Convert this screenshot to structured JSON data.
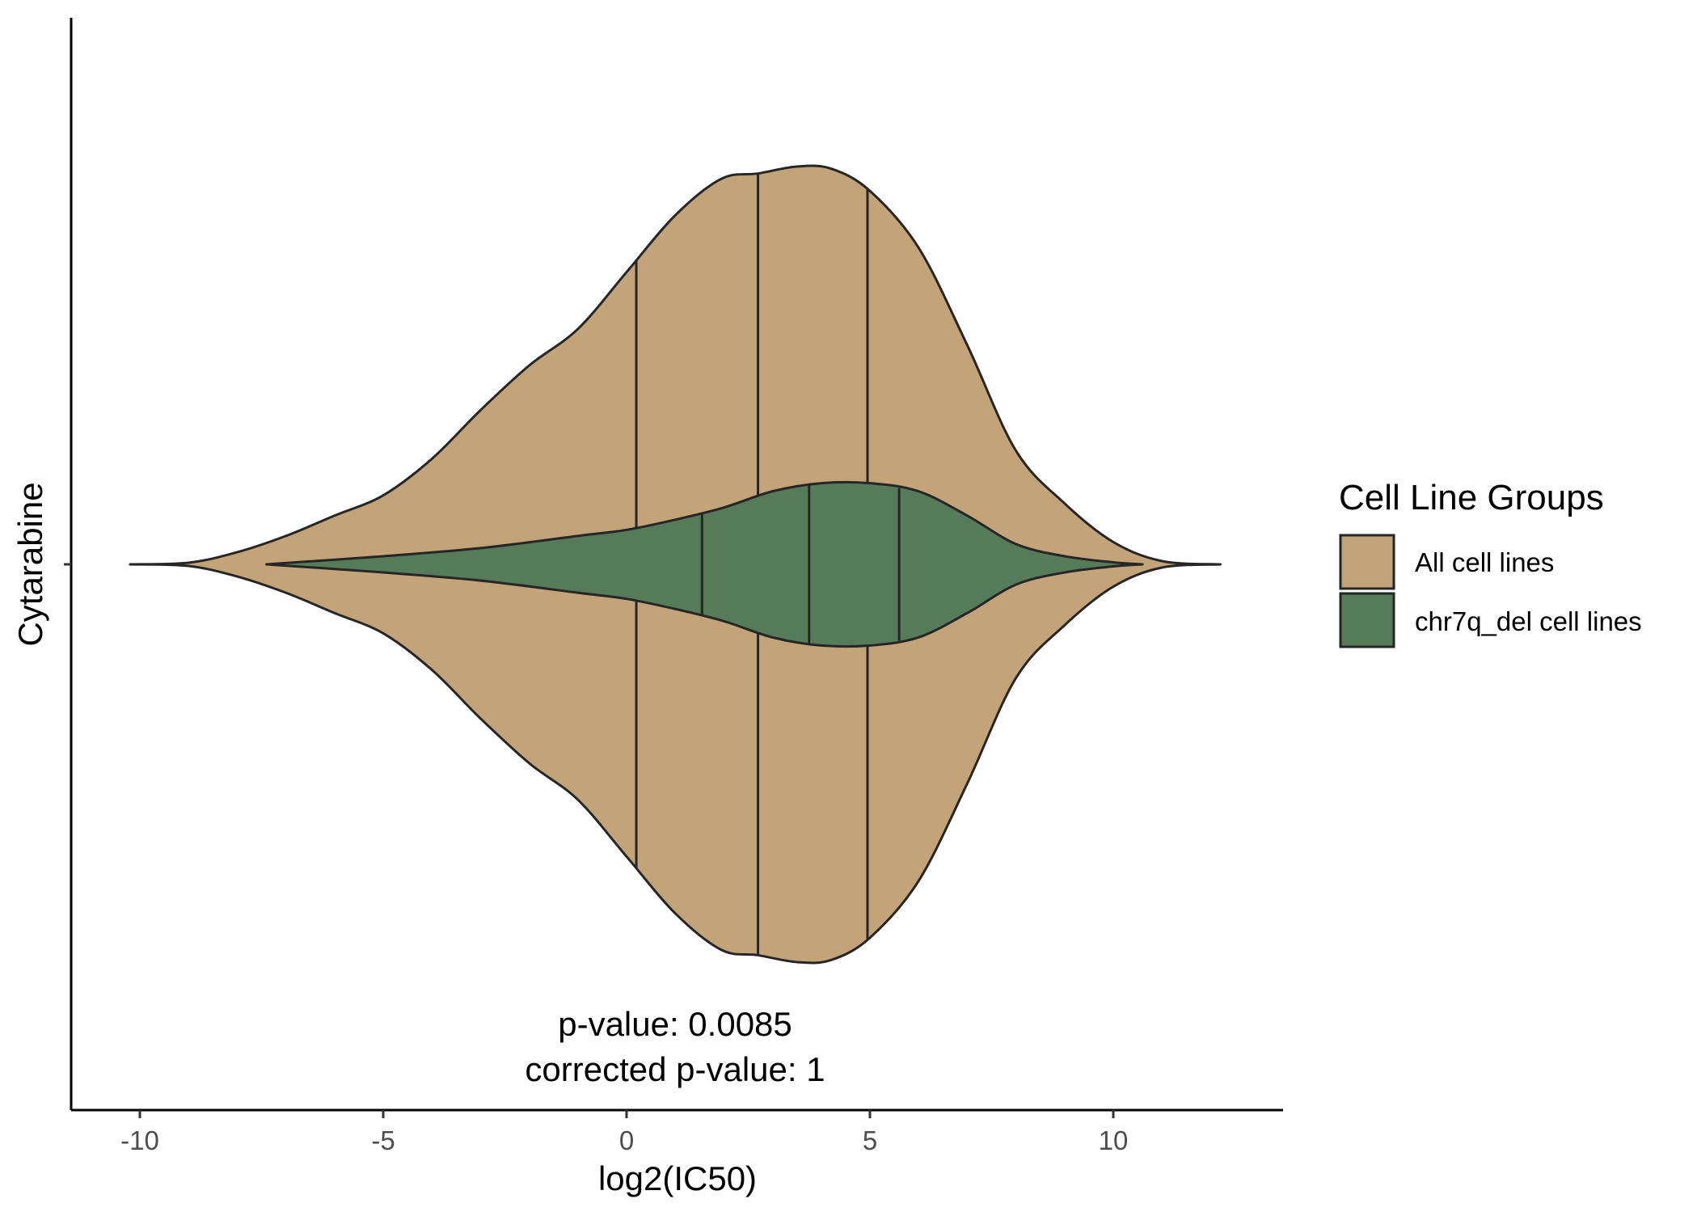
{
  "chart_data": {
    "type": "violin",
    "orientation": "horizontal",
    "xlabel": "log2(IC50)",
    "ylabel": "",
    "category": "Cytarabine",
    "xlim": [
      -11.2,
      13.4
    ],
    "x_ticks": [
      -10,
      -5,
      0,
      5,
      10
    ],
    "x_tick_labels": [
      "-10",
      "-5",
      "0",
      "5",
      "10"
    ],
    "grid": false,
    "legend": {
      "title": "Cell Line Groups",
      "placement": "right"
    },
    "annotations": [
      "p-value: 0.0085",
      "corrected p-value: 1"
    ],
    "series": [
      {
        "name": "All cell lines",
        "color": "#c2a478",
        "x_range": [
          -10.2,
          12.2
        ],
        "quantiles": [
          0.2,
          2.7,
          4.95
        ],
        "density": [
          [
            -10.2,
            0
          ],
          [
            -9.0,
            0.004
          ],
          [
            -8.0,
            0.03
          ],
          [
            -7.0,
            0.07
          ],
          [
            -6.0,
            0.12
          ],
          [
            -5.0,
            0.17
          ],
          [
            -4.0,
            0.26
          ],
          [
            -3.0,
            0.38
          ],
          [
            -2.0,
            0.49
          ],
          [
            -1.0,
            0.58
          ],
          [
            0.0,
            0.72
          ],
          [
            1.0,
            0.86
          ],
          [
            1.95,
            0.95
          ],
          [
            2.7,
            0.963
          ],
          [
            3.5,
            0.98
          ],
          [
            4.2,
            0.975
          ],
          [
            5.0,
            0.92
          ],
          [
            6.0,
            0.78
          ],
          [
            7.0,
            0.54
          ],
          [
            8.0,
            0.28
          ],
          [
            9.0,
            0.15
          ],
          [
            10.0,
            0.055
          ],
          [
            11.0,
            0.008
          ],
          [
            12.2,
            0
          ]
        ]
      },
      {
        "name": "chr7q_del cell lines",
        "color": "#567b59",
        "x_range": [
          -7.4,
          10.6
        ],
        "quantiles": [
          1.55,
          3.75,
          5.6
        ],
        "density": [
          [
            -7.4,
            0
          ],
          [
            -5.0,
            0.02
          ],
          [
            -3.0,
            0.04
          ],
          [
            -1.0,
            0.07
          ],
          [
            0.0,
            0.085
          ],
          [
            1.0,
            0.11
          ],
          [
            2.0,
            0.14
          ],
          [
            3.0,
            0.18
          ],
          [
            4.0,
            0.2
          ],
          [
            5.0,
            0.2
          ],
          [
            6.0,
            0.18
          ],
          [
            7.0,
            0.12
          ],
          [
            8.0,
            0.05
          ],
          [
            9.0,
            0.02
          ],
          [
            10.0,
            0.005
          ],
          [
            10.6,
            0
          ]
        ]
      }
    ]
  }
}
